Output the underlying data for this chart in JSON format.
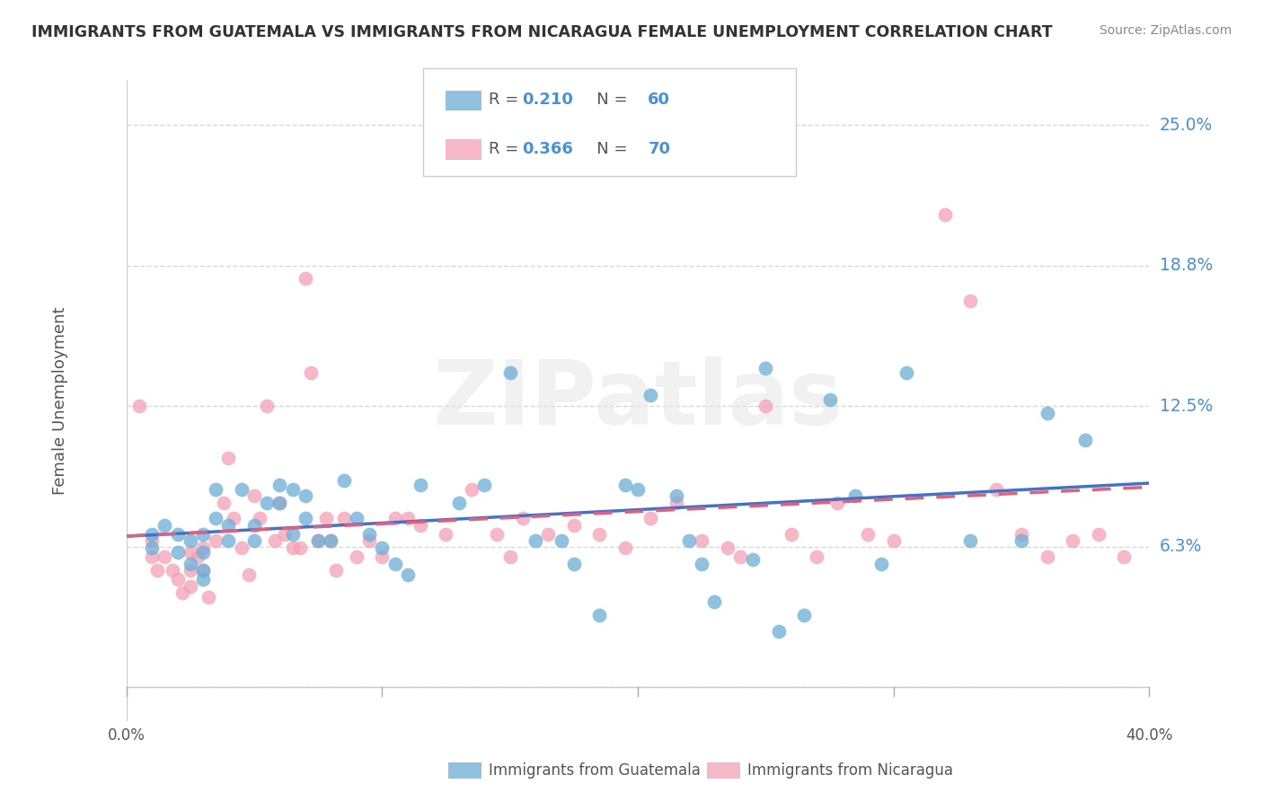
{
  "title": "IMMIGRANTS FROM GUATEMALA VS IMMIGRANTS FROM NICARAGUA FEMALE UNEMPLOYMENT CORRELATION CHART",
  "source": "Source: ZipAtlas.com",
  "ylabel": "Female Unemployment",
  "xlim": [
    0.0,
    0.4
  ],
  "ylim": [
    -0.015,
    0.27
  ],
  "ytick_vals": [
    0.0,
    0.0625,
    0.125,
    0.1875,
    0.25
  ],
  "ytick_labels": [
    "",
    "6.3%",
    "12.5%",
    "18.8%",
    "25.0%"
  ],
  "series1_color": "#6baed6",
  "series2_color": "#f4a0b5",
  "series1_line_color": "#4472c4",
  "series2_line_color": "#e06080",
  "series1_label": "Immigrants from Guatemala",
  "series2_label": "Immigrants from Nicaragua",
  "series1_R": 0.21,
  "series1_N": 60,
  "series2_R": 0.366,
  "series2_N": 70,
  "watermark": "ZIPatlas",
  "background_color": "#ffffff",
  "grid_color": "#d8d8d8",
  "scatter1_x": [
    0.01,
    0.01,
    0.015,
    0.02,
    0.02,
    0.025,
    0.025,
    0.03,
    0.03,
    0.03,
    0.03,
    0.035,
    0.035,
    0.04,
    0.04,
    0.045,
    0.05,
    0.05,
    0.055,
    0.06,
    0.06,
    0.065,
    0.065,
    0.07,
    0.07,
    0.075,
    0.08,
    0.085,
    0.09,
    0.095,
    0.1,
    0.105,
    0.11,
    0.115,
    0.13,
    0.14,
    0.15,
    0.16,
    0.17,
    0.175,
    0.185,
    0.195,
    0.2,
    0.205,
    0.215,
    0.22,
    0.225,
    0.23,
    0.245,
    0.25,
    0.255,
    0.265,
    0.275,
    0.285,
    0.295,
    0.305,
    0.33,
    0.35,
    0.36,
    0.375
  ],
  "scatter1_y": [
    0.068,
    0.062,
    0.072,
    0.068,
    0.06,
    0.065,
    0.055,
    0.068,
    0.06,
    0.052,
    0.048,
    0.075,
    0.088,
    0.072,
    0.065,
    0.088,
    0.072,
    0.065,
    0.082,
    0.09,
    0.082,
    0.088,
    0.068,
    0.085,
    0.075,
    0.065,
    0.065,
    0.092,
    0.075,
    0.068,
    0.062,
    0.055,
    0.05,
    0.09,
    0.082,
    0.09,
    0.14,
    0.065,
    0.065,
    0.055,
    0.032,
    0.09,
    0.088,
    0.13,
    0.085,
    0.065,
    0.055,
    0.038,
    0.057,
    0.142,
    0.025,
    0.032,
    0.128,
    0.085,
    0.055,
    0.14,
    0.065,
    0.065,
    0.122,
    0.11
  ],
  "scatter2_x": [
    0.005,
    0.01,
    0.01,
    0.012,
    0.015,
    0.018,
    0.02,
    0.022,
    0.025,
    0.025,
    0.025,
    0.028,
    0.03,
    0.03,
    0.032,
    0.035,
    0.038,
    0.04,
    0.042,
    0.045,
    0.048,
    0.05,
    0.052,
    0.055,
    0.058,
    0.06,
    0.062,
    0.065,
    0.068,
    0.07,
    0.072,
    0.075,
    0.078,
    0.08,
    0.082,
    0.085,
    0.09,
    0.095,
    0.1,
    0.105,
    0.11,
    0.115,
    0.125,
    0.135,
    0.145,
    0.15,
    0.155,
    0.165,
    0.175,
    0.185,
    0.195,
    0.205,
    0.215,
    0.225,
    0.235,
    0.24,
    0.25,
    0.26,
    0.27,
    0.278,
    0.29,
    0.3,
    0.32,
    0.33,
    0.34,
    0.35,
    0.36,
    0.37,
    0.38,
    0.39
  ],
  "scatter2_y": [
    0.125,
    0.065,
    0.058,
    0.052,
    0.058,
    0.052,
    0.048,
    0.042,
    0.06,
    0.052,
    0.045,
    0.058,
    0.062,
    0.052,
    0.04,
    0.065,
    0.082,
    0.102,
    0.075,
    0.062,
    0.05,
    0.085,
    0.075,
    0.125,
    0.065,
    0.082,
    0.068,
    0.062,
    0.062,
    0.182,
    0.14,
    0.065,
    0.075,
    0.065,
    0.052,
    0.075,
    0.058,
    0.065,
    0.058,
    0.075,
    0.075,
    0.072,
    0.068,
    0.088,
    0.068,
    0.058,
    0.075,
    0.068,
    0.072,
    0.068,
    0.062,
    0.075,
    0.082,
    0.065,
    0.062,
    0.058,
    0.125,
    0.068,
    0.058,
    0.082,
    0.068,
    0.065,
    0.21,
    0.172,
    0.088,
    0.068,
    0.058,
    0.065,
    0.068,
    0.058
  ]
}
